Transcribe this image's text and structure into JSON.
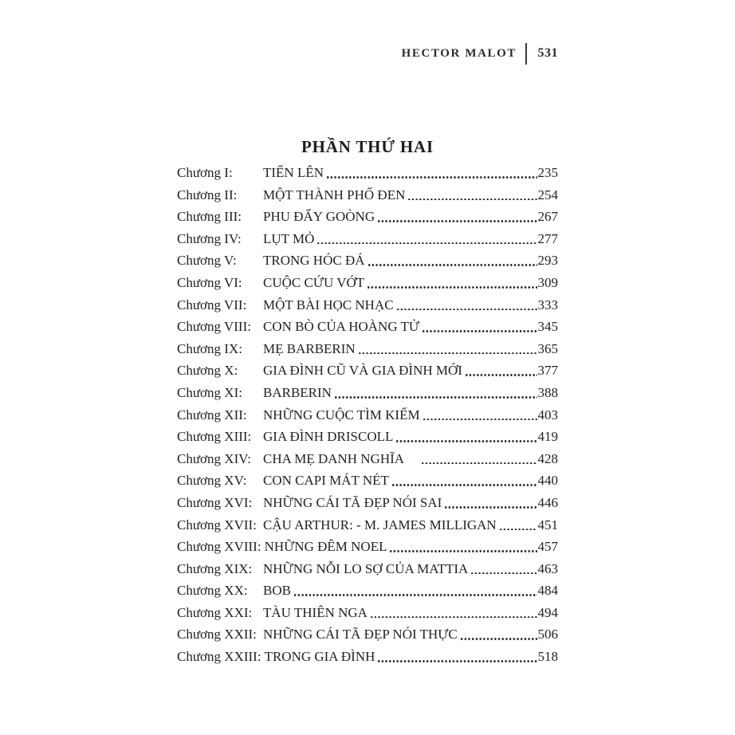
{
  "page": {
    "header": {
      "author": "HECTOR MALOT",
      "page_number": "531"
    },
    "section_title": "PHẦN THỨ HAI",
    "toc": [
      {
        "label": "Chương I:",
        "title": "TIẾN LÊN",
        "page": "235"
      },
      {
        "label": "Chương II:",
        "title": "MỘT THÀNH PHỐ ĐEN",
        "page": "254"
      },
      {
        "label": "Chương III:",
        "title": "PHU ĐẨY GOÒNG",
        "page": "267"
      },
      {
        "label": "Chương IV:",
        "title": "LỤT MỎ",
        "page": "277"
      },
      {
        "label": "Chương V:",
        "title": "TRONG HÓC ĐÁ",
        "page": "293"
      },
      {
        "label": "Chương VI:",
        "title": "CUỘC CỨU VỚT",
        "page": "309"
      },
      {
        "label": "Chương VII:",
        "title": "MỘT BÀI HỌC NHẠC",
        "page": "333"
      },
      {
        "label": "Chương VIII:",
        "title": "CON BÒ CỦA HOÀNG TỬ",
        "page": "345"
      },
      {
        "label": "Chương IX:",
        "title": "MẸ BARBERIN",
        "page": "365"
      },
      {
        "label": "Chương X:",
        "title": "GIA ĐÌNH CŨ VÀ GIA ĐÌNH MỚI",
        "page": "377"
      },
      {
        "label": "Chương XI:",
        "title": "BARBERIN",
        "page": "388"
      },
      {
        "label": "Chương XII:",
        "title": "NHỮNG CUỘC TÌM KIẾM",
        "page": "403"
      },
      {
        "label": "Chương XIII:",
        "title": "GIA ĐÌNH DRISCOLL",
        "page": "419"
      },
      {
        "label": "Chương XIV:",
        "title": "CHA MẸ DANH NGHĨA",
        "page": "428"
      },
      {
        "label": "Chương XV:",
        "title": "CON CAPI MÁT NÉT",
        "page": "440"
      },
      {
        "label": "Chương XVI:",
        "title": "NHỮNG CÁI TÃ ĐẸP NÓI SAI",
        "page": "446"
      },
      {
        "label": "Chương XVII:",
        "title": "CẬU ARTHUR: - M. JAMES MILLIGAN",
        "page": "451"
      },
      {
        "label": "Chương XVIII:",
        "title": "NHỮNG ĐÊM NOEL",
        "page": "457"
      },
      {
        "label": "Chương XIX:",
        "title": "NHỮNG NỖI LO SỢ CỦA MATTIA",
        "page": "463"
      },
      {
        "label": "Chương XX:",
        "title": "BOB",
        "page": "484"
      },
      {
        "label": "Chương XXI:",
        "title": "TÀU THIÊN NGA",
        "page": "494"
      },
      {
        "label": "Chương XXII:",
        "title": "NHỮNG CÁI TÃ ĐẸP NÓI THỰC",
        "page": "506"
      },
      {
        "label": "Chương XXIII:",
        "title": "TRONG GIA ĐÌNH",
        "page": "518"
      }
    ]
  }
}
